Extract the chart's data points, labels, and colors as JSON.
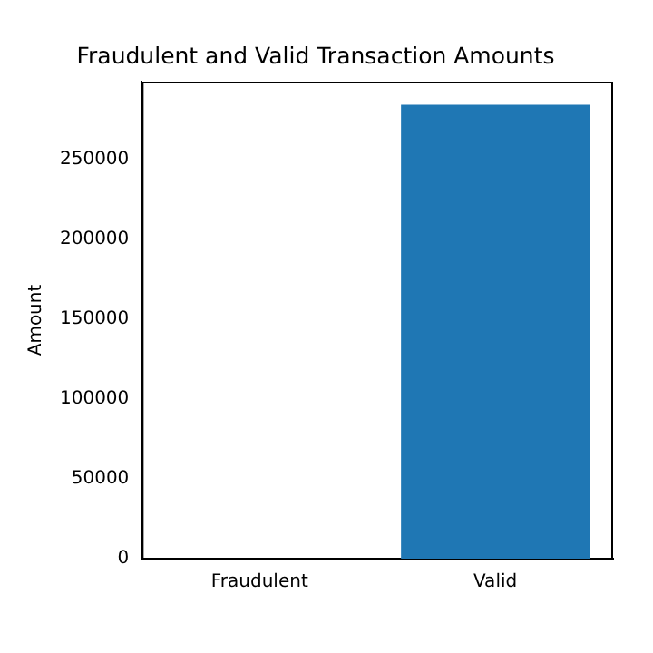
{
  "chart_data": {
    "type": "bar",
    "title": "Fraudulent and Valid Transaction Amounts",
    "ylabel": "Amount",
    "categories": [
      "Fraudulent",
      "Valid"
    ],
    "values": [
      0,
      284000
    ],
    "color": "#1f77b4",
    "ylim": [
      0,
      298500
    ],
    "yticks": [
      0,
      50000,
      100000,
      150000,
      200000,
      250000
    ],
    "grid": false,
    "legend": false
  }
}
